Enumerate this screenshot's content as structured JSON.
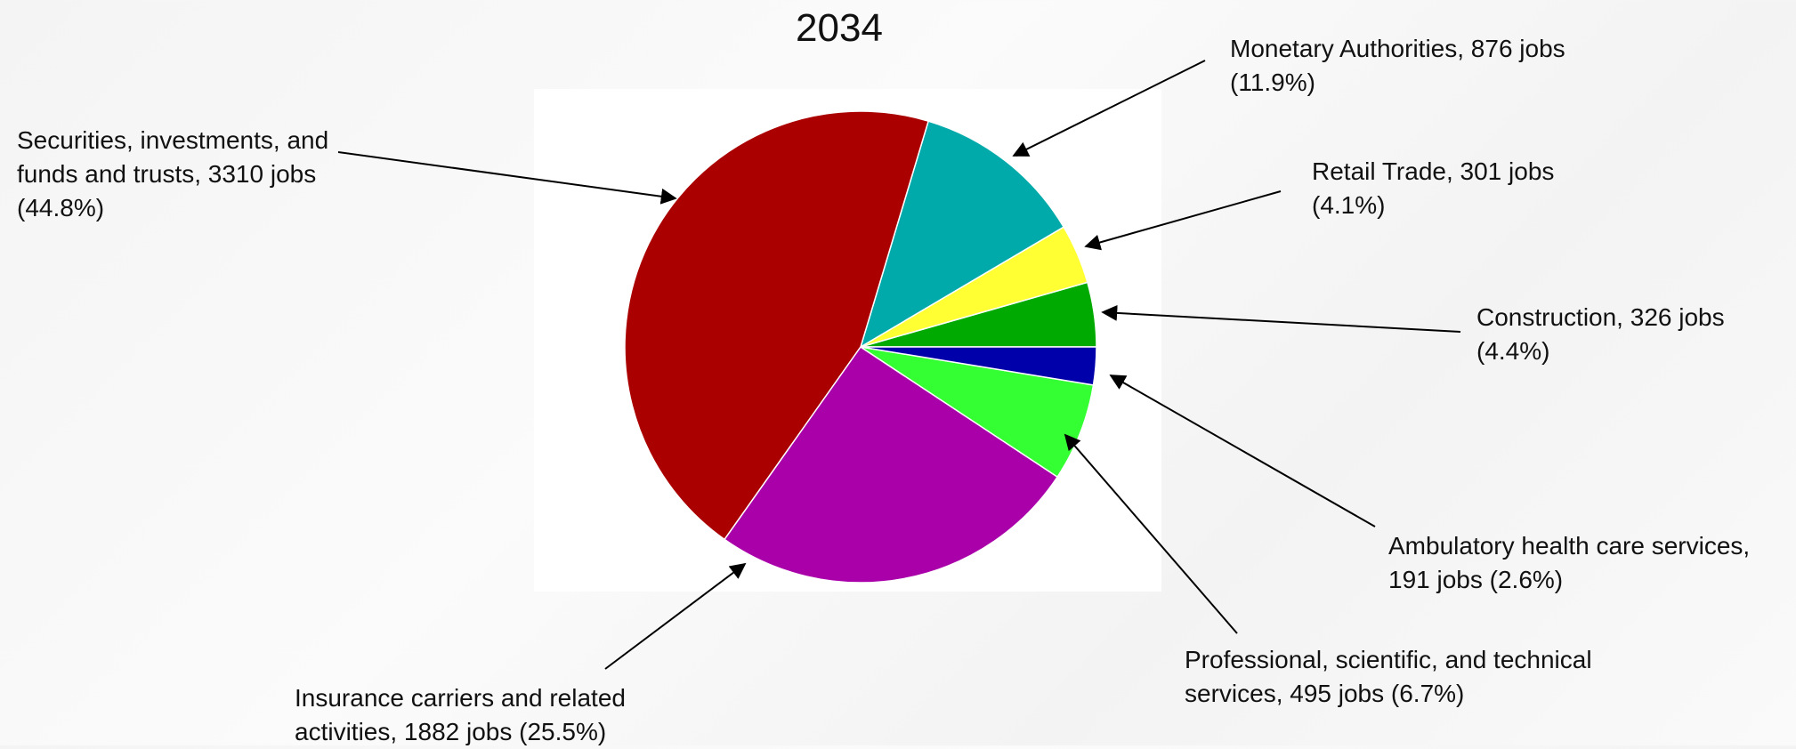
{
  "chart_data": {
    "type": "pie",
    "title": "2034",
    "values": [
      326,
      301,
      876,
      3310,
      1882,
      495,
      191
    ],
    "value_labels": [
      "Construction, 326 jobs (4.4%)",
      "Retail Trade, 301 jobs (4.1%)",
      "Monetary Authorities, 876 jobs (11.9%)",
      "Securities, investments, and funds and trusts, 3310 jobs (44.8%)",
      "Insurance carriers and related activities, 1882 jobs (25.5%)",
      "Professional, scientific, and technical services, 495 jobs (6.7%)",
      "Ambulatory health care services, 191 jobs (2.6%)"
    ],
    "colors": [
      "#00aa00",
      "#ffff33",
      "#00aaaa",
      "#aa0000",
      "#aa00aa",
      "#33ff33",
      "#0000aa"
    ]
  }
}
